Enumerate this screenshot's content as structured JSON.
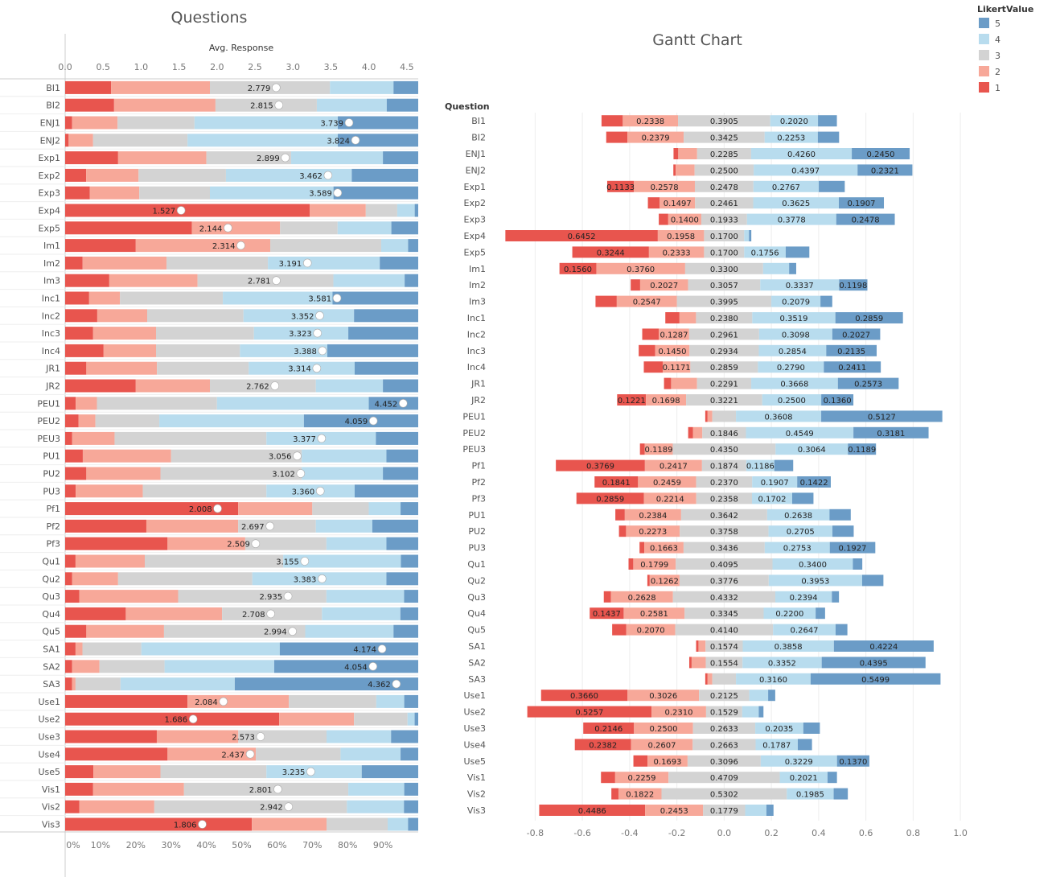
{
  "colors": {
    "1": "#e8554e",
    "2": "#f7a899",
    "3": "#d3d3d3",
    "4": "#b8dcee",
    "5": "#6b9cc7"
  },
  "left": {
    "title": "Questions",
    "axis_title": "Avg. Response",
    "top_ticks": [
      "0.0",
      "0.5",
      "1.0",
      "1.5",
      "2.0",
      "2.5",
      "3.0",
      "3.5",
      "4.0",
      "4.5"
    ],
    "bottom_ticks": [
      "0%",
      "10%",
      "20%",
      "30%",
      "40%",
      "50%",
      "60%",
      "70%",
      "80%",
      "90%"
    ]
  },
  "right": {
    "title": "Gantt Chart",
    "row_header": "Question",
    "ticks": [
      "-0.8",
      "-0.6",
      "-0.4",
      "-0.2",
      "0.0",
      "0.2",
      "0.4",
      "0.6",
      "0.8",
      "1.0"
    ]
  },
  "legend": {
    "title": "LikertValue",
    "items": [
      "5",
      "4",
      "3",
      "2",
      "1"
    ]
  },
  "chart_data": [
    {
      "type": "bar",
      "title": "Questions",
      "xlabel": "Avg. Response",
      "xlim_avg": [
        0,
        4.65
      ],
      "xlim_pct": [
        0,
        1
      ],
      "series_names": [
        "1",
        "2",
        "3",
        "4",
        "5"
      ],
      "categories": [
        "BI1",
        "BI2",
        "ENJ1",
        "ENJ2",
        "Exp1",
        "Exp2",
        "Exp3",
        "Exp4",
        "Exp5",
        "Im1",
        "Im2",
        "Im3",
        "Inc1",
        "Inc2",
        "Inc3",
        "Inc4",
        "JR1",
        "JR2",
        "PEU1",
        "PEU2",
        "PEU3",
        "PU1",
        "PU2",
        "PU3",
        "Pf1",
        "Pf2",
        "Pf3",
        "Qu1",
        "Qu2",
        "Qu3",
        "Qu4",
        "Qu5",
        "SA1",
        "SA2",
        "SA3",
        "Use1",
        "Use2",
        "Use3",
        "Use4",
        "Use5",
        "Vis1",
        "Vis2",
        "Vis3"
      ],
      "avg": [
        2.779,
        2.815,
        3.739,
        3.824,
        2.899,
        3.462,
        3.589,
        1.527,
        2.144,
        2.314,
        3.191,
        2.781,
        3.581,
        3.352,
        3.323,
        3.388,
        3.314,
        2.762,
        4.452,
        4.059,
        3.377,
        3.056,
        3.102,
        3.36,
        2.008,
        2.697,
        2.509,
        3.155,
        3.383,
        2.935,
        2.708,
        2.994,
        4.174,
        4.054,
        4.362,
        2.084,
        1.686,
        2.573,
        2.437,
        3.235,
        2.801,
        2.942,
        1.806
      ],
      "shares": [
        [
          0.13,
          0.28,
          0.34,
          0.18,
          0.07
        ],
        [
          0.14,
          0.29,
          0.29,
          0.2,
          0.09
        ],
        [
          0.02,
          0.13,
          0.22,
          0.41,
          0.23
        ],
        [
          0.01,
          0.07,
          0.27,
          0.43,
          0.23
        ],
        [
          0.15,
          0.25,
          0.24,
          0.26,
          0.1
        ],
        [
          0.06,
          0.15,
          0.25,
          0.36,
          0.19
        ],
        [
          0.07,
          0.14,
          0.2,
          0.35,
          0.24
        ],
        [
          0.7,
          0.16,
          0.09,
          0.05,
          0.01
        ],
        [
          0.33,
          0.23,
          0.15,
          0.14,
          0.07
        ],
        [
          0.21,
          0.4,
          0.33,
          0.08,
          0.03
        ],
        [
          0.05,
          0.24,
          0.29,
          0.32,
          0.11
        ],
        [
          0.13,
          0.26,
          0.4,
          0.21,
          0.04
        ],
        [
          0.07,
          0.09,
          0.3,
          0.32,
          0.25
        ],
        [
          0.09,
          0.14,
          0.27,
          0.31,
          0.18
        ],
        [
          0.08,
          0.18,
          0.28,
          0.27,
          0.2
        ],
        [
          0.11,
          0.15,
          0.24,
          0.25,
          0.26
        ],
        [
          0.06,
          0.2,
          0.26,
          0.3,
          0.18
        ],
        [
          0.2,
          0.21,
          0.3,
          0.19,
          0.1
        ],
        [
          0.03,
          0.06,
          0.34,
          0.43,
          0.14
        ],
        [
          0.04,
          0.05,
          0.19,
          0.43,
          0.34
        ],
        [
          0.02,
          0.12,
          0.43,
          0.31,
          0.12
        ],
        [
          0.05,
          0.25,
          0.37,
          0.24,
          0.09
        ],
        [
          0.06,
          0.21,
          0.4,
          0.23,
          0.1
        ],
        [
          0.03,
          0.19,
          0.35,
          0.25,
          0.18
        ],
        [
          0.49,
          0.21,
          0.16,
          0.09,
          0.05
        ],
        [
          0.23,
          0.26,
          0.22,
          0.16,
          0.13
        ],
        [
          0.29,
          0.22,
          0.23,
          0.17,
          0.09
        ],
        [
          0.03,
          0.2,
          0.4,
          0.34,
          0.05
        ],
        [
          0.02,
          0.13,
          0.38,
          0.38,
          0.09
        ],
        [
          0.04,
          0.28,
          0.42,
          0.22,
          0.04
        ],
        [
          0.17,
          0.27,
          0.28,
          0.22,
          0.05
        ],
        [
          0.06,
          0.22,
          0.4,
          0.25,
          0.07
        ],
        [
          0.03,
          0.02,
          0.17,
          0.4,
          0.4
        ],
        [
          0.02,
          0.08,
          0.19,
          0.32,
          0.42
        ],
        [
          0.02,
          0.01,
          0.13,
          0.33,
          0.53
        ],
        [
          0.35,
          0.29,
          0.25,
          0.08,
          0.04
        ],
        [
          0.6,
          0.21,
          0.15,
          0.02,
          0.01
        ],
        [
          0.27,
          0.24,
          0.26,
          0.19,
          0.08
        ],
        [
          0.29,
          0.25,
          0.24,
          0.17,
          0.05
        ],
        [
          0.08,
          0.19,
          0.3,
          0.27,
          0.16
        ],
        [
          0.08,
          0.26,
          0.47,
          0.16,
          0.04
        ],
        [
          0.04,
          0.21,
          0.54,
          0.16,
          0.04
        ],
        [
          0.55,
          0.22,
          0.18,
          0.06,
          0.03
        ]
      ]
    },
    {
      "type": "bar",
      "title": "Gantt Chart",
      "row_header": "Question",
      "xlim": [
        -0.9,
        1.02
      ],
      "series_names": [
        "1",
        "2",
        "3",
        "4",
        "5"
      ],
      "categories": [
        "BI1",
        "BI2",
        "ENJ1",
        "ENJ2",
        "Exp1",
        "Exp2",
        "Exp3",
        "Exp4",
        "Exp5",
        "Im1",
        "Im2",
        "Im3",
        "Inc1",
        "Inc2",
        "Inc3",
        "Inc4",
        "JR1",
        "JR2",
        "PEU1",
        "PEU2",
        "PEU3",
        "Pf1",
        "Pf2",
        "Pf3",
        "PU1",
        "PU2",
        "PU3",
        "Qu1",
        "Qu2",
        "Qu3",
        "Qu4",
        "Qu5",
        "SA1",
        "SA2",
        "SA3",
        "Use1",
        "Use2",
        "Use3",
        "Use4",
        "Use5",
        "Vis1",
        "Vis2",
        "Vis3"
      ],
      "segments": [
        [
          0.09,
          0.2338,
          0.3905,
          0.202,
          0.08
        ],
        [
          0.09,
          0.2379,
          0.3425,
          0.2253,
          0.09
        ],
        [
          0.02,
          0.08,
          0.2285,
          0.426,
          0.245
        ],
        [
          0.01,
          0.08,
          0.25,
          0.4397,
          0.2321
        ],
        [
          0.1133,
          0.2578,
          0.2478,
          0.2767,
          0.11
        ],
        [
          0.05,
          0.1497,
          0.2461,
          0.3625,
          0.1907
        ],
        [
          0.04,
          0.14,
          0.1933,
          0.3778,
          0.2478
        ],
        [
          0.6452,
          0.1958,
          0.17,
          0.02,
          0.01
        ],
        [
          0.3244,
          0.2333,
          0.17,
          0.1756,
          0.1
        ],
        [
          0.156,
          0.376,
          0.33,
          0.11,
          0.03
        ],
        [
          0.04,
          0.2027,
          0.3057,
          0.3337,
          0.1198
        ],
        [
          0.09,
          0.2547,
          0.3995,
          0.2079,
          0.05
        ],
        [
          0.06,
          0.07,
          0.238,
          0.3519,
          0.2859
        ],
        [
          0.07,
          0.1287,
          0.2961,
          0.3098,
          0.2027
        ],
        [
          0.07,
          0.145,
          0.2934,
          0.2854,
          0.2135
        ],
        [
          0.08,
          0.1171,
          0.2859,
          0.279,
          0.2411
        ],
        [
          0.03,
          0.11,
          0.2291,
          0.3668,
          0.2573
        ],
        [
          0.1221,
          0.1698,
          0.3221,
          0.25,
          0.136
        ],
        [
          0.01,
          0.02,
          0.1,
          0.3608,
          0.5127
        ],
        [
          0.02,
          0.04,
          0.1846,
          0.4549,
          0.3181
        ],
        [
          0.02,
          0.1189,
          0.435,
          0.3064,
          0.1189
        ],
        [
          0.3769,
          0.2417,
          0.1874,
          0.1186,
          0.08
        ],
        [
          0.1841,
          0.2459,
          0.237,
          0.1907,
          0.1422
        ],
        [
          0.2859,
          0.2214,
          0.2358,
          0.1702,
          0.09
        ],
        [
          0.04,
          0.2384,
          0.3642,
          0.2638,
          0.09
        ],
        [
          0.03,
          0.2273,
          0.3758,
          0.2705,
          0.09
        ],
        [
          0.02,
          0.1663,
          0.3436,
          0.2753,
          0.1927
        ],
        [
          0.02,
          0.1799,
          0.4095,
          0.34,
          0.04
        ],
        [
          0.01,
          0.1262,
          0.3776,
          0.3953,
          0.09
        ],
        [
          0.03,
          0.2628,
          0.4332,
          0.2394,
          0.03
        ],
        [
          0.1437,
          0.2581,
          0.3345,
          0.22,
          0.04
        ],
        [
          0.06,
          0.207,
          0.414,
          0.2647,
          0.05
        ],
        [
          0.01,
          0.03,
          0.1574,
          0.3858,
          0.4224
        ],
        [
          0.01,
          0.06,
          0.1554,
          0.3352,
          0.4395
        ],
        [
          0.01,
          0.02,
          0.1,
          0.316,
          0.5499
        ],
        [
          0.366,
          0.3026,
          0.2125,
          0.08,
          0.03
        ],
        [
          0.5257,
          0.231,
          0.1529,
          0.07,
          0.02
        ],
        [
          0.2146,
          0.25,
          0.2633,
          0.2035,
          0.07
        ],
        [
          0.2382,
          0.2607,
          0.2663,
          0.1787,
          0.06
        ],
        [
          0.06,
          0.1693,
          0.3096,
          0.3229,
          0.137
        ],
        [
          0.06,
          0.2259,
          0.4709,
          0.2021,
          0.04
        ],
        [
          0.03,
          0.1822,
          0.5302,
          0.1985,
          0.06
        ],
        [
          0.4486,
          0.2453,
          0.1779,
          0.09,
          0.03
        ]
      ],
      "shown_labels": [
        [
          null,
          "0.2338",
          "0.3905",
          "0.2020",
          null
        ],
        [
          null,
          "0.2379",
          "0.3425",
          "0.2253",
          null
        ],
        [
          null,
          null,
          "0.2285",
          "0.4260",
          "0.2450"
        ],
        [
          null,
          null,
          "0.2500",
          "0.4397",
          "0.2321"
        ],
        [
          "0.1133",
          "0.2578",
          "0.2478",
          "0.2767",
          null
        ],
        [
          null,
          "0.1497",
          "0.2461",
          "0.3625",
          "0.1907"
        ],
        [
          null,
          "0.1400",
          "0.1933",
          "0.3778",
          "0.2478"
        ],
        [
          "0.6452",
          "0.1958",
          "0.1700",
          null,
          null
        ],
        [
          "0.3244",
          "0.2333",
          "0.1700",
          "0.1756",
          null
        ],
        [
          "0.1560",
          "0.3760",
          "0.3300",
          null,
          null
        ],
        [
          null,
          "0.2027",
          "0.3057",
          "0.3337",
          "0.1198"
        ],
        [
          null,
          "0.2547",
          "0.3995",
          "0.2079",
          null
        ],
        [
          null,
          null,
          "0.2380",
          "0.3519",
          "0.2859"
        ],
        [
          null,
          "0.1287",
          "0.2961",
          "0.3098",
          "0.2027"
        ],
        [
          null,
          "0.1450",
          "0.2934",
          "0.2854",
          "0.2135"
        ],
        [
          null,
          "0.1171",
          "0.2859",
          "0.2790",
          "0.2411"
        ],
        [
          null,
          null,
          "0.2291",
          "0.3668",
          "0.2573"
        ],
        [
          "0.1221",
          "0.1698",
          "0.3221",
          "0.2500",
          "0.1360"
        ],
        [
          null,
          null,
          null,
          "0.3608",
          "0.5127"
        ],
        [
          null,
          null,
          "0.1846",
          "0.4549",
          "0.3181"
        ],
        [
          null,
          "0.1189",
          "0.4350",
          "0.3064",
          "0.1189"
        ],
        [
          "0.3769",
          "0.2417",
          "0.1874",
          "0.1186",
          null
        ],
        [
          "0.1841",
          "0.2459",
          "0.2370",
          "0.1907",
          "0.1422"
        ],
        [
          "0.2859",
          "0.2214",
          "0.2358",
          "0.1702",
          null
        ],
        [
          null,
          "0.2384",
          "0.3642",
          "0.2638",
          null
        ],
        [
          null,
          "0.2273",
          "0.3758",
          "0.2705",
          null
        ],
        [
          null,
          "0.1663",
          "0.3436",
          "0.2753",
          "0.1927"
        ],
        [
          null,
          "0.1799",
          "0.4095",
          "0.3400",
          null
        ],
        [
          null,
          "0.1262",
          "0.3776",
          "0.3953",
          null
        ],
        [
          null,
          "0.2628",
          "0.4332",
          "0.2394",
          null
        ],
        [
          "0.1437",
          "0.2581",
          "0.3345",
          "0.2200",
          null
        ],
        [
          null,
          "0.2070",
          "0.4140",
          "0.2647",
          null
        ],
        [
          null,
          null,
          "0.1574",
          "0.3858",
          "0.4224"
        ],
        [
          null,
          null,
          "0.1554",
          "0.3352",
          "0.4395"
        ],
        [
          null,
          null,
          null,
          "0.3160",
          "0.5499"
        ],
        [
          "0.3660",
          "0.3026",
          "0.2125",
          null,
          null
        ],
        [
          "0.5257",
          "0.2310",
          "0.1529",
          null,
          null
        ],
        [
          "0.2146",
          "0.2500",
          "0.2633",
          "0.2035",
          null
        ],
        [
          "0.2382",
          "0.2607",
          "0.2663",
          "0.1787",
          null
        ],
        [
          null,
          "0.1693",
          "0.3096",
          "0.3229",
          "0.1370"
        ],
        [
          null,
          "0.2259",
          "0.4709",
          "0.2021",
          null
        ],
        [
          null,
          "0.1822",
          "0.5302",
          "0.1985",
          null
        ],
        [
          "0.4486",
          "0.2453",
          "0.1779",
          null,
          null
        ]
      ]
    }
  ]
}
